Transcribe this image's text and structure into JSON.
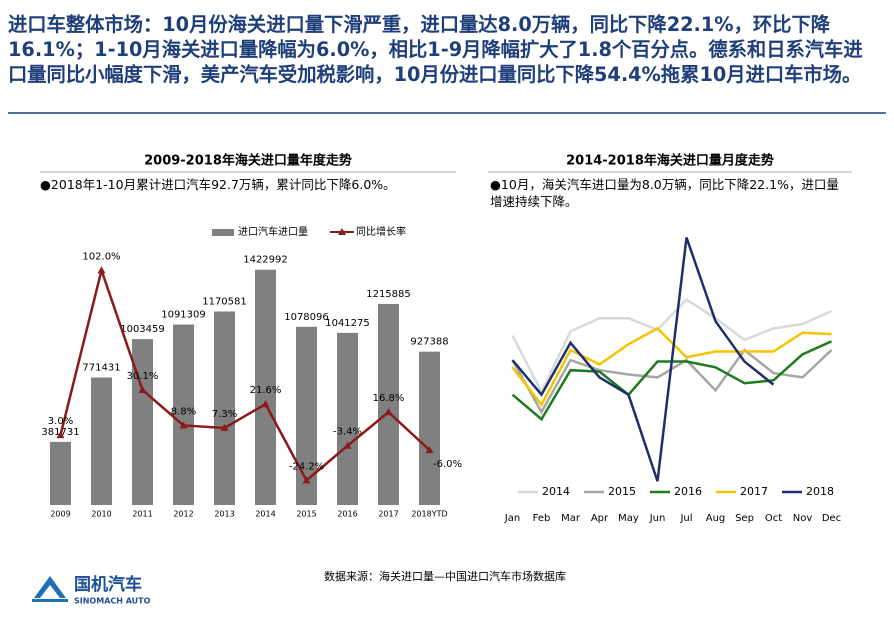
{
  "headline": "进口车整体市场：10月份海关进口量下滑严重，进口量达8.0万辆，同比下降22.1%，环比下降16.1%；1-10月海关进口量降幅为6.0%，相比1-9月降幅扩大了1.8个百分点。德系和日系汽车进口量同比小幅度下滑，美产汽车受加税影响，10月份进口量同比下降54.4%拖累10月进口车市场。",
  "chart_data": [
    {
      "type": "bar",
      "title": "2009-2018年海关进口量年度走势",
      "note": "●2018年1-10月累计进口汽车92.7万辆，累计同比下降6.0%。",
      "categories": [
        "2009",
        "2010",
        "2011",
        "2012",
        "2013",
        "2014",
        "2015",
        "2016",
        "2017",
        "2018YTD"
      ],
      "series": [
        {
          "name": "进口汽车进口量",
          "type": "bar",
          "color": "#808080",
          "values": [
            381731,
            771431,
            1003459,
            1091309,
            1170581,
            1422992,
            1078096,
            1041275,
            1215885,
            927388
          ]
        },
        {
          "name": "同比增长率",
          "type": "line",
          "axis": "y2",
          "color": "#8b1a1a",
          "values": [
            3.0,
            102.0,
            30.1,
            8.8,
            7.3,
            21.6,
            -24.2,
            -3.4,
            16.8,
            -6.0
          ],
          "value_labels": [
            "3.0%",
            "102.0%",
            "30.1%",
            "8.8%",
            "7.3%",
            "21.6%",
            "-24.2%",
            "-3.4%",
            "16.8%",
            "-6.0%"
          ]
        }
      ],
      "ylim": [
        0,
        1500000
      ],
      "y2lim": [
        -39,
        110
      ]
    },
    {
      "type": "line",
      "title": "2014-2018年海关进口量月度走势",
      "note": "●10月，海关汽车进口量为8.0万辆，同比下降22.1%，进口量增速持续下降。",
      "categories": [
        "Jan",
        "Feb",
        "Mar",
        "Apr",
        "May",
        "Jun",
        "Jul",
        "Aug",
        "Sep",
        "Oct",
        "Nov",
        "Dec"
      ],
      "series": [
        {
          "name": "2014",
          "color": "#d9d9d9",
          "values": [
            11.4,
            7.5,
            11.7,
            12.6,
            12.6,
            11.8,
            13.9,
            12.6,
            11.1,
            11.9,
            12.2,
            13.1
          ]
        },
        {
          "name": "2015",
          "color": "#a6a6a6",
          "values": [
            9.7,
            6.1,
            9.7,
            9.0,
            8.7,
            8.5,
            9.7,
            7.6,
            10.4,
            8.8,
            8.5,
            10.4
          ]
        },
        {
          "name": "2016",
          "color": "#1e7b1e",
          "values": [
            7.3,
            5.6,
            9.0,
            8.9,
            7.3,
            9.6,
            9.6,
            9.2,
            8.1,
            8.3,
            10.1,
            11.0
          ]
        },
        {
          "name": "2017",
          "color": "#f5c400",
          "values": [
            9.2,
            6.6,
            10.4,
            9.4,
            10.8,
            11.9,
            9.9,
            10.3,
            10.3,
            10.3,
            11.6,
            11.5
          ]
        },
        {
          "name": "2018",
          "color": "#1f2f6e",
          "values": [
            9.7,
            7.3,
            10.9,
            8.5,
            7.3,
            1.3,
            18.2,
            12.4,
            9.6,
            8.0,
            null,
            null
          ]
        }
      ],
      "ylim": [
        0,
        19
      ]
    }
  ],
  "source": "数据来源：海关进口量—中国进口汽车市场数据库",
  "logo": {
    "name": "国机汽车",
    "english": "SINOMACH AUTO"
  }
}
